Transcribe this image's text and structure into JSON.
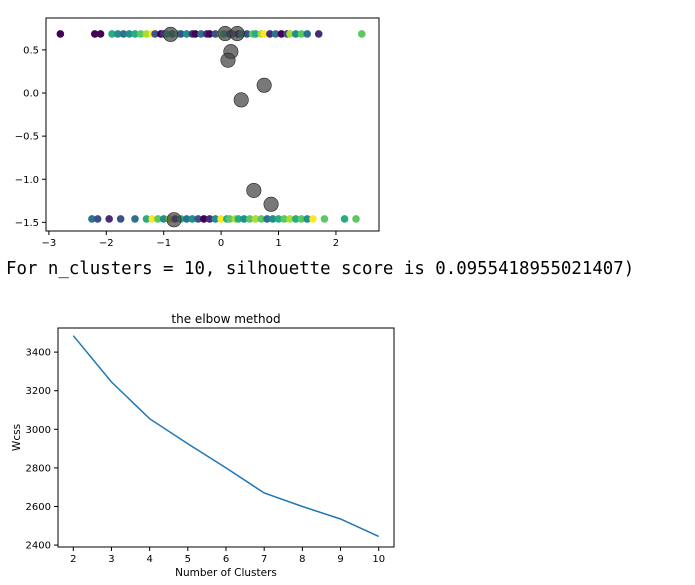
{
  "output": {
    "text": "For n_clusters = 10, silhouette score is 0.0955418955021407)"
  },
  "chart_data": [
    {
      "type": "scatter",
      "title": "",
      "xlabel": "",
      "ylabel": "",
      "xlim": [
        -3.05,
        2.75
      ],
      "ylim": [
        -1.6,
        0.87
      ],
      "xticks": [
        -3,
        -2,
        -1,
        0,
        1,
        2
      ],
      "xtick_labels": [
        "−3",
        "−2",
        "−1",
        "0",
        "1",
        "2"
      ],
      "yticks": [
        0.5,
        0.0,
        -0.5,
        -1.0,
        -1.5
      ],
      "ytick_labels": [
        "0.5",
        "0.0",
        "−0.5",
        "−1.0",
        "−1.5"
      ],
      "colormap": [
        "#440154",
        "#472c7a",
        "#3b518b",
        "#2c718e",
        "#21908d",
        "#27ad81",
        "#5cc863",
        "#aadc32",
        "#fde725"
      ],
      "series": [
        {
          "y": 0.685,
          "x": [
            -2.8,
            -2.2,
            -2.1,
            -1.9,
            -1.8,
            -1.7,
            -1.6,
            -1.5,
            -1.4,
            -1.3,
            -1.2,
            -1.15,
            -1.05,
            -1.0,
            -0.95,
            -0.85,
            -0.75,
            -0.7,
            -0.6,
            -0.5,
            -0.45,
            -0.35,
            -0.25,
            -0.2,
            -0.1,
            0.0,
            0.05,
            0.15,
            0.2,
            0.3,
            0.35,
            0.45,
            0.55,
            0.6,
            0.7,
            0.75,
            0.85,
            0.95,
            1.05,
            1.15,
            1.2,
            1.3,
            1.4,
            1.5,
            1.7,
            2.45
          ],
          "c": [
            0,
            0,
            0,
            5,
            4,
            3,
            4,
            5,
            6,
            7,
            8,
            2,
            0,
            1,
            5,
            3,
            6,
            2,
            4,
            1,
            0,
            3,
            1,
            0,
            2,
            7,
            5,
            1,
            3,
            0,
            4,
            2,
            6,
            5,
            7,
            8,
            1,
            3,
            0,
            2,
            7,
            4,
            6,
            3,
            1,
            6
          ]
        },
        {
          "y": -1.46,
          "x": [
            -2.25,
            -2.15,
            -1.95,
            -1.75,
            -1.5,
            -1.3,
            -1.2,
            -1.1,
            -1.0,
            -0.9,
            -0.8,
            -0.7,
            -0.6,
            -0.5,
            -0.4,
            -0.3,
            -0.2,
            -0.1,
            0.0,
            0.1,
            0.15,
            0.25,
            0.3,
            0.4,
            0.5,
            0.6,
            0.7,
            0.8,
            0.9,
            1.0,
            1.1,
            1.2,
            1.3,
            1.4,
            1.5,
            1.6,
            1.8,
            2.15,
            2.35
          ],
          "c": [
            3,
            2,
            1,
            2,
            3,
            5,
            8,
            6,
            4,
            7,
            1,
            5,
            3,
            4,
            2,
            0,
            1,
            4,
            8,
            5,
            6,
            7,
            5,
            4,
            6,
            7,
            6,
            3,
            4,
            5,
            6,
            7,
            5,
            6,
            4,
            8,
            6,
            5,
            6
          ]
        }
      ],
      "centroids": [
        {
          "x": -0.88,
          "y": 0.68
        },
        {
          "x": 0.07,
          "y": 0.69
        },
        {
          "x": 0.28,
          "y": 0.69
        },
        {
          "x": 0.17,
          "y": 0.48
        },
        {
          "x": 0.12,
          "y": 0.38
        },
        {
          "x": 0.75,
          "y": 0.09
        },
        {
          "x": 0.35,
          "y": -0.08
        },
        {
          "x": 0.57,
          "y": -1.13
        },
        {
          "x": 0.87,
          "y": -1.29
        },
        {
          "x": -0.82,
          "y": -1.47
        }
      ],
      "centroid_color": "#444444"
    },
    {
      "type": "line",
      "title": "the elbow method",
      "xlabel": "Number of Clusters",
      "ylabel": "Wcss",
      "xlim": [
        1.6,
        10.4
      ],
      "ylim": [
        2390,
        3525
      ],
      "xticks": [
        2,
        3,
        4,
        5,
        6,
        7,
        8,
        9,
        10
      ],
      "yticks": [
        2400,
        2600,
        2800,
        3000,
        3200,
        3400
      ],
      "x": [
        2,
        3,
        4,
        5,
        6,
        7,
        8,
        9,
        10
      ],
      "y": [
        3485,
        3245,
        3055,
        2925,
        2800,
        2670,
        2600,
        2535,
        2445
      ],
      "color": "#1f77b4"
    }
  ]
}
